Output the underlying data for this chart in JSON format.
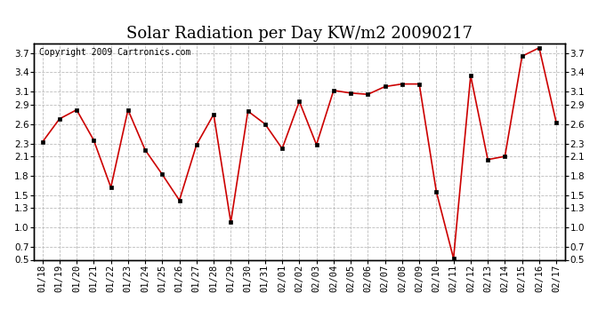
{
  "title": "Solar Radiation per Day KW/m2 20090217",
  "copyright_text": "Copyright 2009 Cartronics.com",
  "labels": [
    "01/18",
    "01/19",
    "01/20",
    "01/21",
    "01/22",
    "01/23",
    "01/24",
    "01/25",
    "01/26",
    "01/27",
    "01/28",
    "01/29",
    "01/30",
    "01/31",
    "02/01",
    "02/02",
    "02/03",
    "02/04",
    "02/05",
    "02/06",
    "02/07",
    "02/08",
    "02/09",
    "02/10",
    "02/11",
    "02/12",
    "02/13",
    "02/14",
    "02/15",
    "02/16",
    "02/17"
  ],
  "values": [
    2.32,
    2.68,
    2.82,
    2.35,
    1.62,
    2.82,
    2.2,
    1.82,
    1.42,
    2.28,
    2.75,
    1.08,
    2.8,
    2.6,
    2.22,
    2.95,
    2.28,
    3.12,
    3.08,
    3.06,
    3.18,
    3.22,
    3.22,
    1.55,
    0.52,
    3.35,
    2.05,
    2.1,
    3.65,
    3.78,
    2.62
  ],
  "line_color": "#cc0000",
  "marker_color": "#000000",
  "background_color": "#ffffff",
  "grid_color": "#bbbbbb",
  "ylim": [
    0.5,
    3.85
  ],
  "yticks": [
    0.5,
    0.7,
    1.0,
    1.3,
    1.5,
    1.8,
    2.1,
    2.3,
    2.6,
    2.9,
    3.1,
    3.4,
    3.7
  ],
  "title_fontsize": 13,
  "label_fontsize": 7.5,
  "copyright_fontsize": 7
}
